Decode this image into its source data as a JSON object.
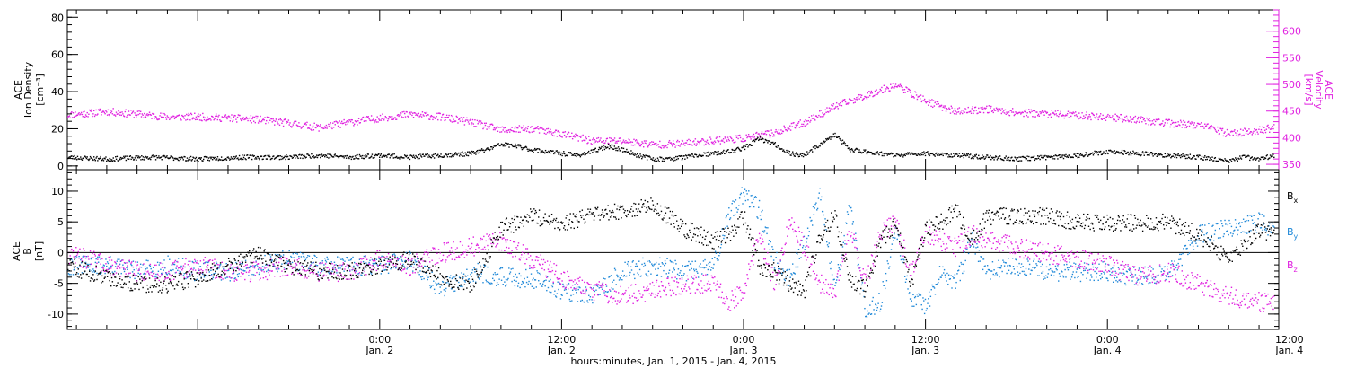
{
  "colors": {
    "black": "#000000",
    "magenta": "#e020e0",
    "blue": "#1e88d8"
  },
  "time_axis": {
    "ticks": [
      {
        "time": "0:00",
        "date": "Jan. 2"
      },
      {
        "time": "12:00",
        "date": "Jan. 2"
      },
      {
        "time": "0:00",
        "date": "Jan. 3"
      },
      {
        "time": "12:00",
        "date": "Jan. 3"
      },
      {
        "time": "0:00",
        "date": "Jan. 4"
      },
      {
        "time": "12:00",
        "date": "Jan. 4"
      }
    ],
    "label": "hours:minutes, Jan.  1, 2015 - Jan.  4, 2015"
  },
  "chart_data": [
    {
      "type": "scatter",
      "panel": "top",
      "x_range_hours": [
        -20.6,
        59.3
      ],
      "left_axis": {
        "label": "ACE Ion Density",
        "unit": "[cm⁻³]",
        "range": [
          -2,
          84
        ],
        "ticks": [
          "0",
          "20",
          "40",
          "60",
          "80"
        ]
      },
      "right_axis": {
        "label": "ACE Velocity",
        "unit": "[km/s]",
        "color": "#e020e0",
        "range": [
          340,
          640
        ],
        "ticks": [
          "350",
          "400",
          "450",
          "500",
          "550",
          "600"
        ]
      },
      "series": [
        {
          "axis": "left",
          "color": "#000000",
          "x": [
            -20.6,
            -18,
            -15,
            -12,
            -9,
            -6,
            -4,
            -2,
            0,
            2,
            4,
            6,
            7,
            8,
            9,
            10,
            11,
            12,
            13,
            14,
            15,
            16,
            17,
            18,
            19,
            20,
            21,
            22,
            23,
            24,
            25,
            26,
            27,
            28,
            29,
            30,
            31,
            32,
            33,
            34,
            36,
            38,
            40,
            42,
            44,
            46,
            48,
            50,
            52,
            54,
            56,
            57,
            58,
            59
          ],
          "y": [
            5,
            4,
            5,
            4,
            5,
            5,
            6,
            5,
            6,
            5,
            6,
            7,
            9,
            12,
            11,
            9,
            8,
            7,
            6,
            8,
            11,
            9,
            6,
            4,
            4,
            5,
            6,
            7,
            8,
            10,
            15,
            12,
            7,
            6,
            12,
            17,
            9,
            8,
            7,
            6,
            7,
            6,
            5,
            4,
            5,
            6,
            8,
            7,
            6,
            5,
            3,
            5,
            4,
            6
          ]
        },
        {
          "axis": "right",
          "color": "#e020e0",
          "x": [
            -20.6,
            -18,
            -16,
            -14,
            -12,
            -10,
            -8,
            -6,
            -4,
            -2,
            0,
            2,
            4,
            6,
            8,
            10,
            12,
            14,
            16,
            18,
            20,
            22,
            24,
            26,
            28,
            30,
            32,
            34,
            36,
            38,
            40,
            42,
            44,
            46,
            48,
            50,
            52,
            54,
            56,
            57,
            58,
            59
          ],
          "y": [
            444,
            450,
            445,
            440,
            440,
            438,
            435,
            428,
            420,
            430,
            438,
            445,
            440,
            430,
            415,
            418,
            408,
            395,
            395,
            388,
            390,
            396,
            400,
            410,
            430,
            460,
            480,
            500,
            470,
            450,
            455,
            448,
            446,
            443,
            440,
            435,
            428,
            425,
            408,
            412,
            415,
            420
          ]
        }
      ]
    },
    {
      "type": "scatter",
      "panel": "bottom",
      "x_range_hours": [
        -20.6,
        59.3
      ],
      "left_axis": {
        "label": "ACE B",
        "unit": "[nT]",
        "range": [
          -12.5,
          13.5
        ],
        "ticks": [
          "10",
          "5",
          "0",
          "-5",
          "-10"
        ]
      },
      "legend": [
        {
          "name": "Bx",
          "base": "B",
          "sub": "x",
          "color": "#000000"
        },
        {
          "name": "By",
          "base": "B",
          "sub": "y",
          "color": "#1e88d8"
        },
        {
          "name": "Bz",
          "base": "B",
          "sub": "z",
          "color": "#e020e0"
        }
      ],
      "zero_line": true,
      "series": [
        {
          "name": "Bx",
          "color": "#000000",
          "x": [
            -20.6,
            -18,
            -16,
            -14,
            -12,
            -10,
            -8,
            -6,
            -4,
            -2,
            0,
            2,
            4,
            6,
            8,
            10,
            12,
            14,
            16,
            18,
            20,
            22,
            23,
            24,
            25,
            26,
            27,
            28,
            29,
            30,
            31,
            32,
            33,
            34,
            35,
            36,
            37,
            38,
            39,
            40,
            42,
            44,
            46,
            48,
            50,
            52,
            54,
            56,
            58,
            59
          ],
          "y": [
            -2,
            -4,
            -5,
            -5,
            -4,
            -2,
            0,
            -2,
            -3,
            -3,
            -2,
            -1,
            -4,
            -5,
            4,
            6,
            5,
            6,
            7,
            8,
            4,
            2,
            3,
            6,
            -2,
            -3,
            -5,
            -6,
            3,
            6,
            -4,
            -6,
            2,
            5,
            -5,
            4,
            5,
            7,
            2,
            6,
            6,
            6,
            5,
            5,
            5,
            5,
            3,
            -1,
            4,
            3
          ]
        },
        {
          "name": "By",
          "color": "#1e88d8",
          "x": [
            -20.6,
            -18,
            -16,
            -14,
            -12,
            -10,
            -8,
            -6,
            -4,
            -2,
            0,
            2,
            4,
            6,
            8,
            10,
            12,
            14,
            16,
            18,
            20,
            22,
            23,
            24,
            25,
            26,
            27,
            28,
            29,
            30,
            31,
            32,
            33,
            34,
            35,
            36,
            37,
            38,
            39,
            40,
            42,
            44,
            46,
            48,
            50,
            52,
            54,
            56,
            58,
            59
          ],
          "y": [
            -2,
            -2,
            -3,
            -2,
            -3,
            -3,
            -2,
            -1,
            -2,
            -2,
            -2,
            -1,
            -6,
            -3,
            -4,
            -4,
            -6,
            -7,
            -3,
            -2,
            -3,
            -2,
            6,
            10,
            7,
            -1,
            -4,
            2,
            10,
            -6,
            8,
            -9,
            -8,
            4,
            -7,
            -9,
            -3,
            -5,
            2,
            -3,
            -2,
            -3,
            -3,
            -3,
            -4,
            -3,
            3,
            4,
            5,
            4
          ]
        },
        {
          "name": "Bz",
          "color": "#e020e0",
          "x": [
            -20.6,
            -18,
            -16,
            -14,
            -12,
            -10,
            -8,
            -6,
            -4,
            -2,
            0,
            2,
            4,
            6,
            8,
            10,
            12,
            14,
            16,
            18,
            20,
            22,
            23,
            24,
            25,
            26,
            27,
            28,
            29,
            30,
            31,
            32,
            33,
            34,
            35,
            36,
            37,
            38,
            39,
            40,
            42,
            44,
            46,
            48,
            50,
            52,
            54,
            56,
            58,
            59
          ],
          "y": [
            0,
            -2,
            -3,
            -3,
            -2,
            -3,
            -3,
            -2,
            -3,
            -3,
            -1,
            -2,
            0,
            1,
            2,
            -1,
            -4,
            -6,
            -7,
            -6,
            -5,
            -5,
            -8,
            -6,
            3,
            -5,
            5,
            1,
            -5,
            -6,
            4,
            -5,
            3,
            5,
            -3,
            3,
            2,
            1,
            3,
            2,
            1,
            0,
            -1,
            -2,
            -4,
            -3,
            -5,
            -7,
            -8,
            -8
          ]
        }
      ]
    }
  ]
}
